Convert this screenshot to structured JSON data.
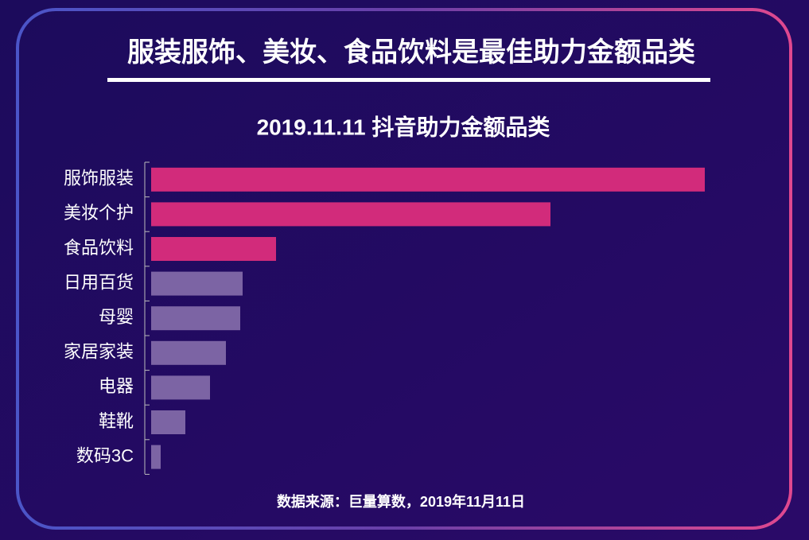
{
  "chart_data": {
    "type": "bar",
    "orientation": "horizontal",
    "headline": "服装服饰、美妆、食品饮料是最佳助力金额品类",
    "title": "2019.11.11 抖音助力金额品类",
    "source": "数据来源：巨量算数，2019年11月11日",
    "categories": [
      "服饰服装",
      "美妆个护",
      "食品饮料",
      "日用百货",
      "母婴",
      "家居家装",
      "电器",
      "鞋靴",
      "数码3C"
    ],
    "values": [
      696,
      502,
      157,
      115,
      112,
      94,
      74,
      43,
      12
    ],
    "colors": [
      "#d22b7b",
      "#d22b7b",
      "#d22b7b",
      "#7c64a4",
      "#7c64a4",
      "#7c64a4",
      "#7c64a4",
      "#7c64a4",
      "#7c64a4"
    ]
  }
}
